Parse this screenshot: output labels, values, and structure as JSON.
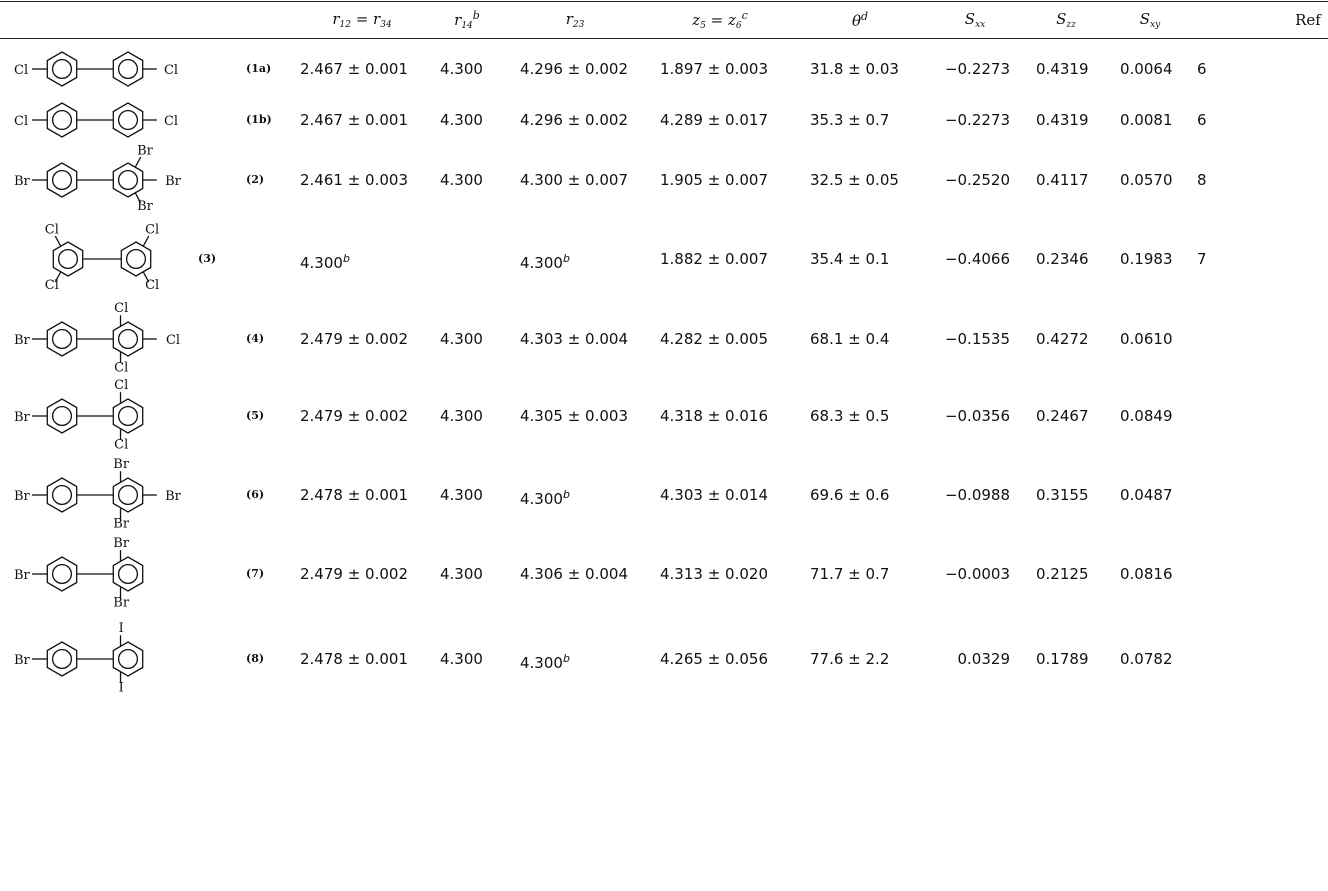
{
  "header": {
    "r12": "r12 = r34",
    "r14": "r14",
    "r14_sup": "b",
    "r23": "r23",
    "z5": "z5 = z6",
    "z5_sup": "c",
    "theta": "θ",
    "theta_sup": "d",
    "sxx": "Sxx",
    "szz": "Szz",
    "sxy": "Sxy",
    "ref": "Ref"
  },
  "rows": [
    {
      "label": "(1a)",
      "subs": [
        "Cl",
        "Cl"
      ],
      "r12": "2.467 ± 0.001",
      "r14": "4.300",
      "r23": "4.296 ± 0.002",
      "r23_sup": "",
      "z5": "1.897 ± 0.003",
      "theta": "31.8 ± 0.03",
      "sxx": "−0.2273",
      "szz": "0.4319",
      "sxy": "0.0064",
      "ref": "6",
      "r12_sup": ""
    },
    {
      "label": "(1b)",
      "subs": [
        "Cl",
        "Cl"
      ],
      "r12": "2.467 ± 0.001",
      "r14": "4.300",
      "r23": "4.296 ± 0.002",
      "r23_sup": "",
      "z5": "4.289 ± 0.017",
      "theta": "35.3 ± 0.7",
      "sxx": "−0.2273",
      "szz": "0.4319",
      "sxy": "0.0081",
      "ref": "6",
      "r12_sup": ""
    },
    {
      "label": "(2)",
      "subs": [
        "Br",
        "Br",
        "Br",
        "Br"
      ],
      "r12": "2.461 ± 0.003",
      "r14": "4.300",
      "r23": "4.300 ± 0.007",
      "r23_sup": "",
      "z5": "1.905 ± 0.007",
      "theta": "32.5 ± 0.05",
      "sxx": "−0.2520",
      "szz": "0.4117",
      "sxy": "0.0570",
      "ref": "8",
      "r12_sup": ""
    },
    {
      "label": "(3)",
      "subs": [
        "Cl",
        "Cl",
        "Cl",
        "Cl"
      ],
      "r12": "4.300",
      "r12_sup": "b",
      "r14": "",
      "r23": "4.300",
      "r23_sup": "b",
      "z5": "1.882 ± 0.007",
      "theta": "35.4 ± 0.1",
      "sxx": "−0.4066",
      "szz": "0.2346",
      "sxy": "0.1983",
      "ref": "7"
    },
    {
      "label": "(4)",
      "subs": [
        "Br",
        "Cl",
        "Cl",
        "Cl"
      ],
      "r12": "2.479 ± 0.002",
      "r14": "4.300",
      "r23": "4.303 ± 0.004",
      "r23_sup": "",
      "z5": "4.282 ± 0.005",
      "theta": "68.1 ± 0.4",
      "sxx": "−0.1535",
      "szz": "0.4272",
      "sxy": "0.0610",
      "ref": "",
      "r12_sup": ""
    },
    {
      "label": "(5)",
      "subs": [
        "Br",
        "Cl",
        "Cl"
      ],
      "r12": "2.479 ± 0.002",
      "r14": "4.300",
      "r23": "4.305 ± 0.003",
      "r23_sup": "",
      "z5": "4.318 ± 0.016",
      "theta": "68.3 ± 0.5",
      "sxx": "−0.0356",
      "szz": "0.2467",
      "sxy": "0.0849",
      "ref": "",
      "r12_sup": ""
    },
    {
      "label": "(6)",
      "subs": [
        "Br",
        "Br",
        "Br",
        "Br"
      ],
      "r12": "2.478 ± 0.001",
      "r14": "4.300",
      "r23": "4.300",
      "r23_sup": "b",
      "z5": "4.303 ± 0.014",
      "theta": "69.6 ± 0.6",
      "sxx": "−0.0988",
      "szz": "0.3155",
      "sxy": "0.0487",
      "ref": "",
      "r12_sup": ""
    },
    {
      "label": "(7)",
      "subs": [
        "Br",
        "Br",
        "Br"
      ],
      "r12": "2.479 ± 0.002",
      "r14": "4.300",
      "r23": "4.306 ± 0.004",
      "r23_sup": "",
      "z5": "4.313 ± 0.020",
      "theta": "71.7 ± 0.7",
      "sxx": "−0.0003",
      "szz": "0.2125",
      "sxy": "0.0816",
      "ref": "",
      "r12_sup": ""
    },
    {
      "label": "(8)",
      "subs": [
        "Br",
        "I",
        "I"
      ],
      "r12": "2.478 ± 0.001",
      "r14": "4.300",
      "r23": "4.300",
      "r23_sup": "b",
      "z5": "4.265 ± 0.056",
      "theta": "77.6 ± 2.2",
      "sxx": "0.0329",
      "szz": "0.1789",
      "sxy": "0.0782",
      "ref": "",
      "r12_sup": ""
    }
  ]
}
